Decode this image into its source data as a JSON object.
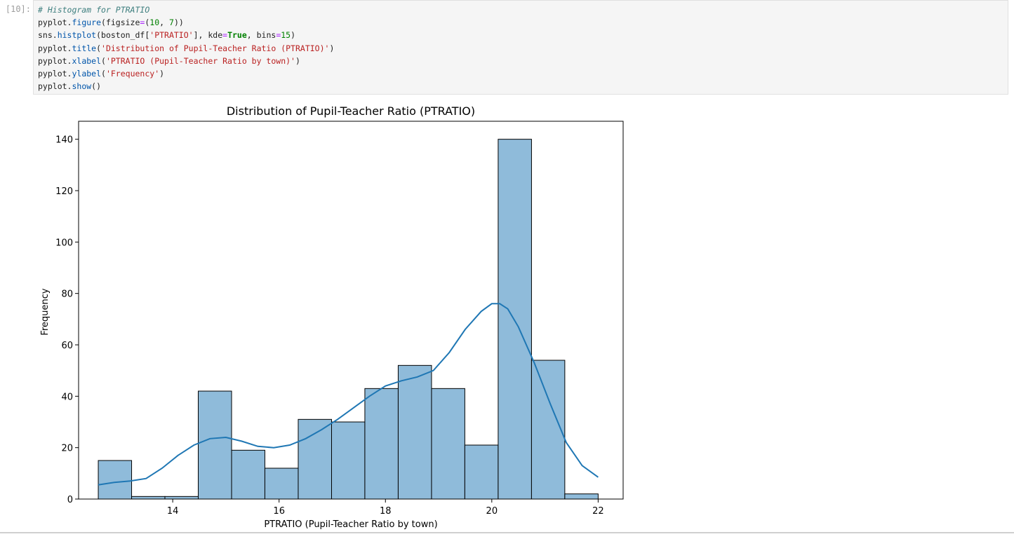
{
  "cell": {
    "prompt": "[10]:",
    "code_lines": [
      [
        {
          "t": "# Histogram for PTRATIO",
          "c": "comment"
        }
      ],
      [
        {
          "t": "pyplot.",
          "c": ""
        },
        {
          "t": "figure",
          "c": "attr"
        },
        {
          "t": "(figsize",
          "c": ""
        },
        {
          "t": "=",
          "c": "op"
        },
        {
          "t": "(",
          "c": ""
        },
        {
          "t": "10",
          "c": "num"
        },
        {
          "t": ", ",
          "c": ""
        },
        {
          "t": "7",
          "c": "num"
        },
        {
          "t": "))",
          "c": ""
        }
      ],
      [
        {
          "t": "sns.",
          "c": ""
        },
        {
          "t": "histplot",
          "c": "attr"
        },
        {
          "t": "(boston_df[",
          "c": ""
        },
        {
          "t": "'PTRATIO'",
          "c": "str"
        },
        {
          "t": "], kde",
          "c": ""
        },
        {
          "t": "=",
          "c": "op"
        },
        {
          "t": "True",
          "c": "kw"
        },
        {
          "t": ", bins",
          "c": ""
        },
        {
          "t": "=",
          "c": "op"
        },
        {
          "t": "15",
          "c": "num"
        },
        {
          "t": ")",
          "c": ""
        }
      ],
      [
        {
          "t": "pyplot.",
          "c": ""
        },
        {
          "t": "title",
          "c": "attr"
        },
        {
          "t": "(",
          "c": ""
        },
        {
          "t": "'Distribution of Pupil-Teacher Ratio (PTRATIO)'",
          "c": "str"
        },
        {
          "t": ")",
          "c": ""
        }
      ],
      [
        {
          "t": "pyplot.",
          "c": ""
        },
        {
          "t": "xlabel",
          "c": "attr"
        },
        {
          "t": "(",
          "c": ""
        },
        {
          "t": "'PTRATIO (Pupil-Teacher Ratio by town)'",
          "c": "str"
        },
        {
          "t": ")",
          "c": ""
        }
      ],
      [
        {
          "t": "pyplot.",
          "c": ""
        },
        {
          "t": "ylabel",
          "c": "attr"
        },
        {
          "t": "(",
          "c": ""
        },
        {
          "t": "'Frequency'",
          "c": "str"
        },
        {
          "t": ")",
          "c": ""
        }
      ],
      [
        {
          "t": "pyplot.",
          "c": ""
        },
        {
          "t": "show",
          "c": "attr"
        },
        {
          "t": "()",
          "c": ""
        }
      ]
    ]
  },
  "colors": {
    "bar_fill": "#8fbbda",
    "bar_edge": "#000000",
    "kde_line": "#1f77b4",
    "comment": "#408080",
    "attr": "#0055aa",
    "string": "#ba2121",
    "number": "#008000",
    "keyword": "#008000",
    "operator": "#aa22ff"
  },
  "chart_data": {
    "type": "bar",
    "title": "Distribution of Pupil-Teacher Ratio (PTRATIO)",
    "xlabel": "PTRATIO (Pupil-Teacher Ratio by town)",
    "ylabel": "Frequency",
    "xlim": [
      12.23,
      22.47
    ],
    "ylim": [
      0,
      147
    ],
    "xticks": [
      14,
      16,
      18,
      20,
      22
    ],
    "yticks": [
      0,
      20,
      40,
      60,
      80,
      100,
      120,
      140
    ],
    "grid": false,
    "bins": [
      {
        "x0": 12.6,
        "x1": 13.227,
        "count": 15
      },
      {
        "x0": 13.227,
        "x1": 13.853,
        "count": 1
      },
      {
        "x0": 13.853,
        "x1": 14.48,
        "count": 1
      },
      {
        "x0": 14.48,
        "x1": 15.107,
        "count": 42
      },
      {
        "x0": 15.107,
        "x1": 15.733,
        "count": 19
      },
      {
        "x0": 15.733,
        "x1": 16.36,
        "count": 12
      },
      {
        "x0": 16.36,
        "x1": 16.987,
        "count": 31
      },
      {
        "x0": 16.987,
        "x1": 17.613,
        "count": 30
      },
      {
        "x0": 17.613,
        "x1": 18.24,
        "count": 43
      },
      {
        "x0": 18.24,
        "x1": 18.867,
        "count": 52
      },
      {
        "x0": 18.867,
        "x1": 19.493,
        "count": 43
      },
      {
        "x0": 19.493,
        "x1": 20.12,
        "count": 21
      },
      {
        "x0": 20.12,
        "x1": 20.747,
        "count": 140
      },
      {
        "x0": 20.747,
        "x1": 21.373,
        "count": 54
      },
      {
        "x0": 21.373,
        "x1": 22.0,
        "count": 2
      }
    ],
    "kde": {
      "x": [
        12.6,
        12.9,
        13.2,
        13.5,
        13.8,
        14.1,
        14.4,
        14.7,
        15.0,
        15.3,
        15.6,
        15.9,
        16.2,
        16.5,
        16.8,
        17.1,
        17.4,
        17.7,
        18.0,
        18.3,
        18.6,
        18.9,
        19.2,
        19.5,
        19.8,
        20.0,
        20.15,
        20.3,
        20.5,
        20.8,
        21.1,
        21.4,
        21.7,
        22.0
      ],
      "y": [
        5.5,
        6.5,
        7,
        8,
        12,
        17,
        21,
        23.5,
        24,
        22.5,
        20.5,
        20,
        21,
        23.5,
        27,
        31,
        35.5,
        40,
        44,
        46,
        47.5,
        50,
        57,
        66,
        73,
        76,
        76,
        74,
        67,
        53,
        37,
        22,
        13,
        8.5
      ]
    }
  }
}
